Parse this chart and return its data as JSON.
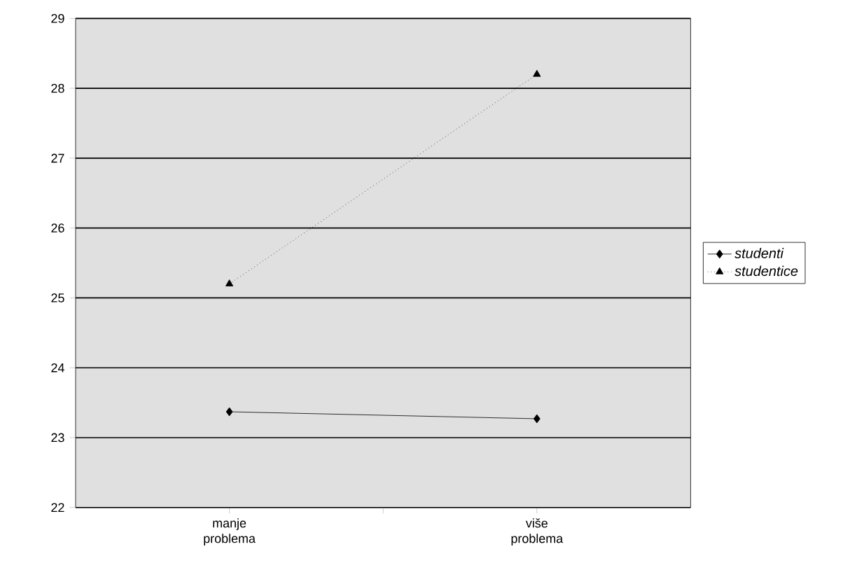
{
  "chart_data": {
    "type": "line",
    "categories": [
      "manje problema",
      "više problema"
    ],
    "series": [
      {
        "name": "studenti",
        "color": "#000000",
        "marker": "diamond",
        "line_style": "solid",
        "values": [
          23.37,
          23.27
        ]
      },
      {
        "name": "studentice",
        "color": "#000000",
        "marker": "triangle",
        "line_style": "dotted",
        "values": [
          25.2,
          28.2
        ]
      }
    ],
    "ylim": [
      22,
      29
    ],
    "yticks": [
      22,
      23,
      24,
      25,
      26,
      27,
      28,
      29
    ],
    "grid": "y",
    "legend": "right"
  }
}
